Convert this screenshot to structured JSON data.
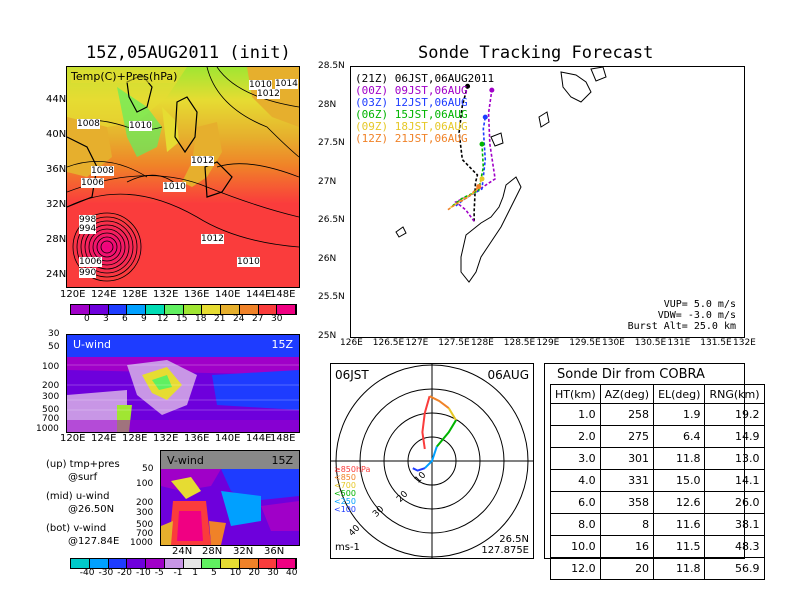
{
  "left_title": "15Z,05AUG2011 (init)",
  "right_title": "Sonde Tracking Forecast",
  "map_panel": {
    "label": "Temp(C)+Pres(hPa)",
    "lat_ticks": [
      "44N",
      "40N",
      "36N",
      "32N",
      "28N",
      "24N"
    ],
    "lon_ticks": [
      "120E",
      "124E",
      "128E",
      "132E",
      "136E",
      "140E",
      "144E",
      "148E"
    ],
    "isobar_labels": [
      "1010",
      "1012",
      "1014",
      "1008",
      "1010",
      "1008",
      "1006",
      "1010",
      "1012",
      "1012",
      "1010",
      "998",
      "994",
      "990",
      "1006"
    ],
    "colorbar_ticks": [
      "0",
      "3",
      "6",
      "9",
      "12",
      "15",
      "18",
      "21",
      "24",
      "27",
      "30"
    ],
    "colorbar_colors": [
      "#a000c8",
      "#6e00dc",
      "#1e3cff",
      "#00a0ff",
      "#00dcb4",
      "#60f060",
      "#a0e632",
      "#e6dc32",
      "#e6af2d",
      "#f08228",
      "#fa3c3c",
      "#f00082"
    ]
  },
  "u_panel": {
    "label": "U-wind",
    "time": "15Z",
    "p_ticks": [
      "30",
      "50",
      "100",
      "200",
      "300",
      "500",
      "700",
      "1000"
    ],
    "lon_ticks": [
      "120E",
      "124E",
      "128E",
      "132E",
      "136E",
      "140E",
      "144E",
      "148E"
    ]
  },
  "v_panel": {
    "label": "V-wind",
    "time": "15Z",
    "p_ticks": [
      "50",
      "100",
      "200",
      "300",
      "500",
      "700",
      "1000"
    ],
    "lat_ticks": [
      "24N",
      "28N",
      "32N",
      "36N"
    ]
  },
  "notes": {
    "up": "(up)  tmp+pres",
    "up2": "@surf",
    "mid": "(mid)  u-wind",
    "mid2": "@26.50N",
    "bot": "(bot)  v-wind",
    "bot2": "@127.84E"
  },
  "wind_colorbar_ticks": [
    "-40",
    "-30",
    "-20",
    "-10",
    "-5",
    "-1",
    "1",
    "5",
    "10",
    "20",
    "30",
    "40"
  ],
  "wind_colorbar_colors": [
    "#00c8c8",
    "#00a0ff",
    "#1e3cff",
    "#6e00dc",
    "#a000c8",
    "#c896e6",
    "#e6e6e6",
    "#60f060",
    "#e6dc32",
    "#f08228",
    "#fa3c3c",
    "#f00082"
  ],
  "track_panel": {
    "legend": [
      {
        "code": "(21Z)",
        "label": "06JST,06AUG2011",
        "color": "#000000"
      },
      {
        "code": "(00Z)",
        "label": "09JST,06AUG",
        "color": "#a000c8"
      },
      {
        "code": "(03Z)",
        "label": "12JST,06AUG",
        "color": "#1e3cff"
      },
      {
        "code": "(06Z)",
        "label": "15JST,06AUG",
        "color": "#00b400"
      },
      {
        "code": "(09Z)",
        "label": "18JST,06AUG",
        "color": "#e6c828"
      },
      {
        "code": "(12Z)",
        "label": "21JST,06AUG",
        "color": "#f08228"
      }
    ],
    "lat_ticks": [
      "28.5N",
      "28N",
      "27.5N",
      "27N",
      "26.5N",
      "26N",
      "25.5N",
      "25N"
    ],
    "lon_ticks": [
      "126E",
      "126.5E",
      "127E",
      "127.5E",
      "128E",
      "128.5E",
      "129E",
      "129.5E",
      "130E",
      "130.5E",
      "131E",
      "131.5E",
      "132E"
    ],
    "vup": "VUP=  5.0  m/s",
    "vdw": "VDW= -3.0  m/s",
    "burst": "Burst Alt= 25.0  km"
  },
  "hodograph": {
    "left_label": "06JST",
    "right_label": "06AUG",
    "ring_labels": [
      "10",
      "20",
      "30",
      "40"
    ],
    "legend": [
      {
        "label": "≥850hPa",
        "color": "#fa3c3c"
      },
      {
        "label": "<850",
        "color": "#f08228"
      },
      {
        "label": "<700",
        "color": "#e6c828"
      },
      {
        "label": "<500",
        "color": "#00b400"
      },
      {
        "label": "<250",
        "color": "#00a0ff"
      },
      {
        "label": "<100",
        "color": "#1e3cff"
      }
    ],
    "unit": "ms-1",
    "loc_lat": "26.5N",
    "loc_lon": "127.875E"
  },
  "sonde_table": {
    "title": "Sonde Dir from COBRA",
    "headers": [
      "HT(km)",
      "AZ(deg)",
      "EL(deg)",
      "RNG(km)"
    ],
    "rows": [
      [
        "1.0",
        "258",
        "1.9",
        "19.2"
      ],
      [
        "2.0",
        "275",
        "6.4",
        "14.9"
      ],
      [
        "3.0",
        "301",
        "11.8",
        "13.0"
      ],
      [
        "4.0",
        "331",
        "15.0",
        "14.1"
      ],
      [
        "6.0",
        "358",
        "12.6",
        "26.0"
      ],
      [
        "8.0",
        "8",
        "11.6",
        "38.1"
      ],
      [
        "10.0",
        "16",
        "11.5",
        "48.3"
      ],
      [
        "12.0",
        "20",
        "11.8",
        "56.9"
      ]
    ]
  },
  "chart_data": [
    {
      "type": "heatmap",
      "title": "15Z,05AUG2011 (init)",
      "label": "Temp(C)+Pres(hPa)",
      "x_range": [
        120,
        150
      ],
      "y_range": [
        22,
        47
      ],
      "colorbar": [
        0,
        3,
        6,
        9,
        12,
        15,
        18,
        21,
        24,
        27,
        30
      ]
    },
    {
      "type": "heatmap",
      "label": "U-wind",
      "x_range": [
        120,
        150
      ],
      "y_ticks": [
        30,
        50,
        100,
        200,
        300,
        500,
        700,
        1000
      ]
    },
    {
      "type": "heatmap",
      "label": "V-wind",
      "x_range": [
        22,
        38
      ],
      "y_ticks": [
        50,
        100,
        200,
        300,
        500,
        700,
        1000
      ],
      "colorbar": [
        -40,
        -30,
        -20,
        -10,
        -5,
        -1,
        1,
        5,
        10,
        20,
        30,
        40
      ]
    },
    {
      "type": "line",
      "title": "Sonde Tracking Forecast",
      "x_range": [
        126,
        132
      ],
      "y_range": [
        25,
        28.5
      ],
      "series": [
        {
          "name": "(21Z)",
          "points": [
            [
              127.88,
              26.5
            ],
            [
              127.88,
              26.63
            ],
            [
              127.89,
              26.8
            ],
            [
              127.9,
              27.0
            ],
            [
              127.93,
              27.1
            ],
            [
              127.7,
              27.3
            ],
            [
              127.65,
              27.65
            ],
            [
              127.7,
              28.0
            ],
            [
              127.78,
              28.25
            ]
          ]
        },
        {
          "name": "(00Z)",
          "points": [
            [
              127.88,
              26.5
            ],
            [
              127.75,
              26.65
            ],
            [
              127.6,
              26.75
            ],
            [
              127.85,
              26.85
            ],
            [
              128.2,
              27.05
            ],
            [
              128.12,
              27.5
            ],
            [
              128.1,
              27.9
            ],
            [
              128.15,
              28.2
            ]
          ]
        },
        {
          "name": "(03Z)",
          "points": [
            [
              127.6,
              26.7
            ],
            [
              127.75,
              26.8
            ],
            [
              128.0,
              26.92
            ],
            [
              128.05,
              27.3
            ],
            [
              128.02,
              27.7
            ],
            [
              128.05,
              27.85
            ]
          ]
        },
        {
          "name": "(06Z)",
          "points": [
            [
              127.55,
              26.7
            ],
            [
              127.7,
              26.8
            ],
            [
              127.95,
              26.9
            ],
            [
              128.02,
              27.2
            ],
            [
              128.0,
              27.5
            ]
          ]
        },
        {
          "name": "(09Z)",
          "points": [
            [
              127.52,
              26.68
            ],
            [
              127.7,
              26.78
            ],
            [
              127.9,
              26.88
            ],
            [
              128.0,
              27.05
            ]
          ]
        },
        {
          "name": "(12Z)",
          "points": [
            [
              127.48,
              26.65
            ],
            [
              127.6,
              26.72
            ],
            [
              127.8,
              26.82
            ],
            [
              127.95,
              26.95
            ]
          ]
        }
      ],
      "annotations": [
        "VUP=  5.0  m/s",
        "VDW= -3.0  m/s",
        "Burst Alt= 25.0  km"
      ]
    },
    {
      "type": "line",
      "label": "hodograph 06JST 06AUG",
      "unit": "ms-1",
      "rings": [
        10,
        20,
        30,
        40
      ],
      "segments": [
        {
          "layer": "≥850hPa",
          "uv": [
            [
              -3,
              5
            ],
            [
              -4,
              12
            ],
            [
              -3,
              20
            ],
            [
              -1,
              27
            ]
          ]
        },
        {
          "layer": "<850",
          "uv": [
            [
              -1,
              27
            ],
            [
              3,
              25
            ],
            [
              7,
              22
            ]
          ]
        },
        {
          "layer": "<700",
          "uv": [
            [
              7,
              22
            ],
            [
              10,
              17
            ]
          ]
        },
        {
          "layer": "<500",
          "uv": [
            [
              10,
              17
            ],
            [
              7,
              12
            ],
            [
              2,
              6
            ]
          ]
        },
        {
          "layer": "<250",
          "uv": [
            [
              2,
              6
            ],
            [
              0,
              0
            ],
            [
              -3,
              -3
            ]
          ]
        },
        {
          "layer": "<100",
          "uv": [
            [
              -3,
              -3
            ],
            [
              -6,
              -4
            ],
            [
              -8,
              -3
            ]
          ]
        }
      ]
    }
  ]
}
